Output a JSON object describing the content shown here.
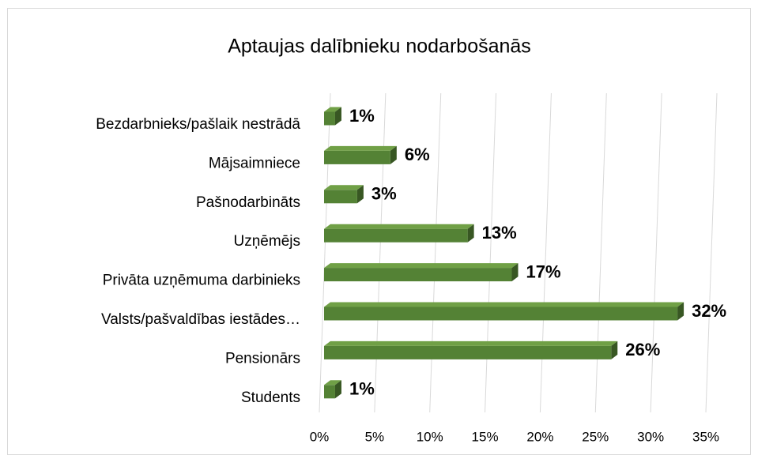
{
  "chart_data": {
    "type": "bar",
    "orientation": "horizontal",
    "title": "Aptaujas dalībnieku nodarbošanās",
    "categories": [
      "Bezdarbnieks/pašlaik nestrādā",
      "Mājsaimniece",
      "Pašnodarbināts",
      "Uzņēmējs",
      "Privāta uzņēmuma darbinieks",
      "Valsts/pašvaldības iestādes…",
      "Pensionārs",
      "Students"
    ],
    "values": [
      1,
      6,
      3,
      13,
      17,
      32,
      26,
      1
    ],
    "value_labels": [
      "1%",
      "6%",
      "3%",
      "13%",
      "17%",
      "32%",
      "26%",
      "1%"
    ],
    "color": "#548235",
    "xlim": [
      0,
      35
    ],
    "xticks": [
      {
        "value": 0,
        "label": "0%"
      },
      {
        "value": 5,
        "label": "5%"
      },
      {
        "value": 10,
        "label": "10%"
      },
      {
        "value": 15,
        "label": "15%"
      },
      {
        "value": 20,
        "label": "20%"
      },
      {
        "value": 25,
        "label": "25%"
      },
      {
        "value": 30,
        "label": "30%"
      },
      {
        "value": 35,
        "label": "35%"
      }
    ],
    "grid": true
  }
}
